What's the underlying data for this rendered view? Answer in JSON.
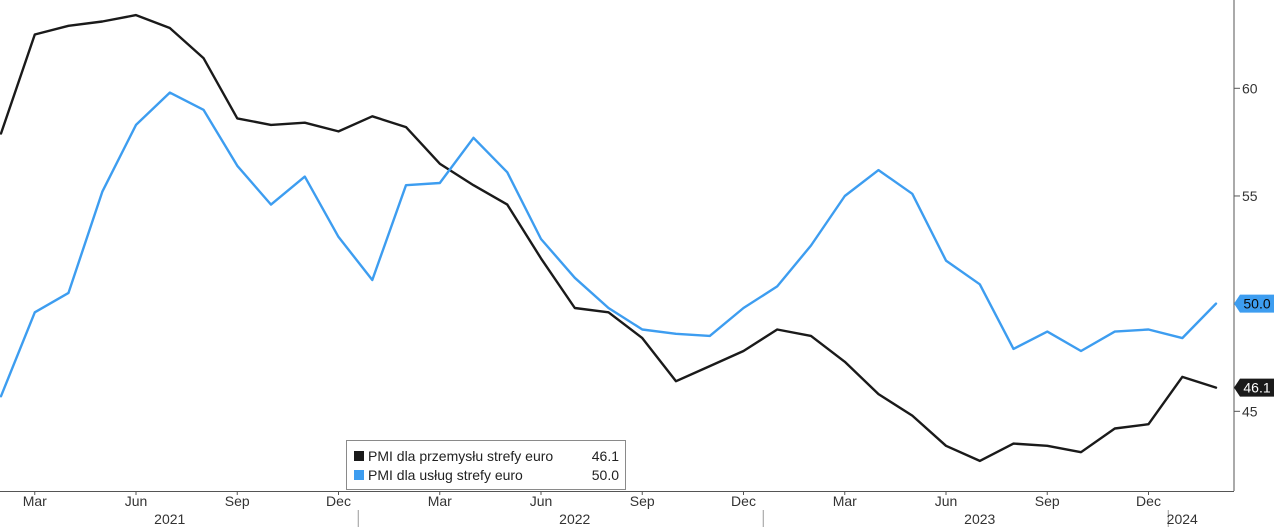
{
  "chart_data": {
    "type": "line",
    "title": "",
    "xlabel": "",
    "ylabel": "",
    "ylim": [
      41.3,
      64.1
    ],
    "y_ticks": [
      45,
      50,
      55,
      60
    ],
    "y_tick_labels": [
      "45",
      "50",
      "55",
      "60"
    ],
    "x_range": [
      "2021-02",
      "2024-02"
    ],
    "x_tick_labels": [
      {
        "month": "2021-03",
        "label": "Mar"
      },
      {
        "month": "2021-06",
        "label": "Jun"
      },
      {
        "month": "2021-09",
        "label": "Sep"
      },
      {
        "month": "2021-12",
        "label": "Dec"
      },
      {
        "month": "2022-03",
        "label": "Mar"
      },
      {
        "month": "2022-06",
        "label": "Jun"
      },
      {
        "month": "2022-09",
        "label": "Sep"
      },
      {
        "month": "2022-12",
        "label": "Dec"
      },
      {
        "month": "2023-03",
        "label": "Mar"
      },
      {
        "month": "2023-06",
        "label": "Jun"
      },
      {
        "month": "2023-09",
        "label": "Sep"
      },
      {
        "month": "2023-12",
        "label": "Dec"
      }
    ],
    "year_labels": [
      {
        "label": "2021",
        "center_month": "2021-07"
      },
      {
        "label": "2022",
        "center_month": "2022-07"
      },
      {
        "label": "2023",
        "center_month": "2023-07"
      },
      {
        "label": "2024",
        "center_month": "2024-01"
      }
    ],
    "year_dividers": [
      "2022-01",
      "2023-01",
      "2024-01"
    ],
    "grid": false,
    "legend_position": "bottom-center",
    "series": [
      {
        "name": "PMI dla przemysłu strefy euro",
        "legend_value": "46.1",
        "last_label": "46.1",
        "color": "#1a1a1a",
        "x": [
          "2021-02",
          "2021-03",
          "2021-04",
          "2021-05",
          "2021-06",
          "2021-07",
          "2021-08",
          "2021-09",
          "2021-10",
          "2021-11",
          "2021-12",
          "2022-01",
          "2022-02",
          "2022-03",
          "2022-04",
          "2022-05",
          "2022-06",
          "2022-07",
          "2022-08",
          "2022-09",
          "2022-10",
          "2022-11",
          "2022-12",
          "2023-01",
          "2023-02",
          "2023-03",
          "2023-04",
          "2023-05",
          "2023-06",
          "2023-07",
          "2023-08",
          "2023-09",
          "2023-10",
          "2023-11",
          "2023-12",
          "2024-01",
          "2024-02"
        ],
        "values": [
          57.9,
          62.5,
          62.9,
          63.1,
          63.4,
          62.8,
          61.4,
          58.6,
          58.3,
          58.4,
          58.0,
          58.7,
          58.2,
          56.5,
          55.5,
          54.6,
          52.1,
          49.8,
          49.6,
          48.4,
          46.4,
          47.1,
          47.8,
          48.8,
          48.5,
          47.3,
          45.8,
          44.8,
          43.4,
          42.7,
          43.5,
          43.4,
          43.1,
          44.2,
          44.4,
          46.6,
          46.1
        ]
      },
      {
        "name": "PMI dla usług strefy euro",
        "legend_value": "50.0",
        "last_label": "50.0",
        "color": "#3d9df0",
        "x": [
          "2021-02",
          "2021-03",
          "2021-04",
          "2021-05",
          "2021-06",
          "2021-07",
          "2021-08",
          "2021-09",
          "2021-10",
          "2021-11",
          "2021-12",
          "2022-01",
          "2022-02",
          "2022-03",
          "2022-04",
          "2022-05",
          "2022-06",
          "2022-07",
          "2022-08",
          "2022-09",
          "2022-10",
          "2022-11",
          "2022-12",
          "2023-01",
          "2023-02",
          "2023-03",
          "2023-04",
          "2023-05",
          "2023-06",
          "2023-07",
          "2023-08",
          "2023-09",
          "2023-10",
          "2023-11",
          "2023-12",
          "2024-01",
          "2024-02"
        ],
        "values": [
          45.7,
          49.6,
          50.5,
          55.2,
          58.3,
          59.8,
          59.0,
          56.4,
          54.6,
          55.9,
          53.1,
          51.1,
          55.5,
          55.6,
          57.7,
          56.1,
          53.0,
          51.2,
          49.8,
          48.8,
          48.6,
          48.5,
          49.8,
          50.8,
          52.7,
          55.0,
          56.2,
          55.1,
          52.0,
          50.9,
          47.9,
          48.7,
          47.8,
          48.7,
          48.8,
          48.4,
          50.0
        ]
      }
    ]
  }
}
